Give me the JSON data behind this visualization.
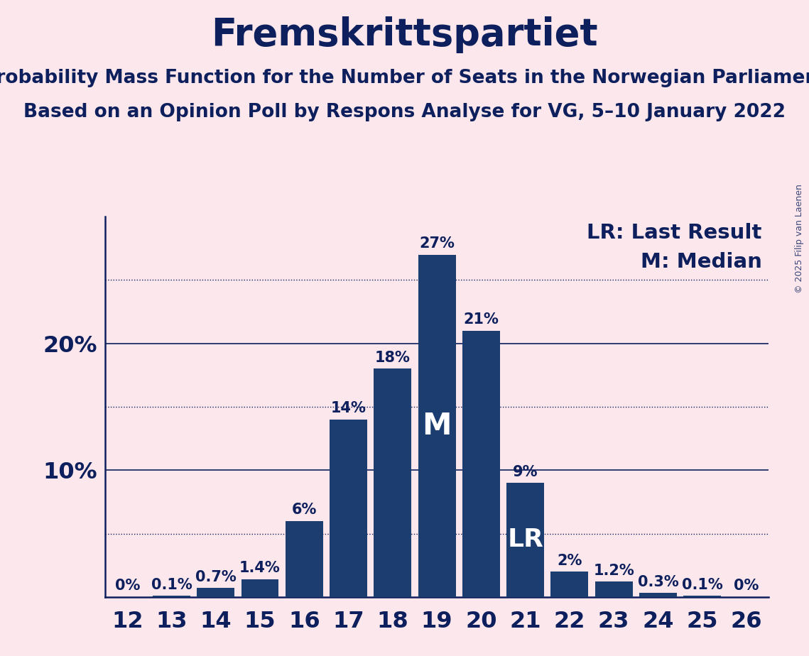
{
  "title": "Fremskrittspartiet",
  "subtitle1": "Probability Mass Function for the Number of Seats in the Norwegian Parliament",
  "subtitle2": "Based on an Opinion Poll by Respons Analyse for VG, 5–10 January 2022",
  "copyright": "© 2025 Filip van Laenen",
  "seats": [
    12,
    13,
    14,
    15,
    16,
    17,
    18,
    19,
    20,
    21,
    22,
    23,
    24,
    25,
    26
  ],
  "values": [
    0.0,
    0.1,
    0.7,
    1.4,
    6.0,
    14.0,
    18.0,
    27.0,
    21.0,
    9.0,
    2.0,
    1.2,
    0.3,
    0.1,
    0.0
  ],
  "labels": [
    "0%",
    "0.1%",
    "0.7%",
    "1.4%",
    "6%",
    "14%",
    "18%",
    "27%",
    "21%",
    "9%",
    "2%",
    "1.2%",
    "0.3%",
    "0.1%",
    "0%"
  ],
  "bar_color": "#1b3d6f",
  "background_color": "#fce8ec",
  "text_color": "#0d1f5c",
  "median_seat": 19,
  "lr_seat": 21,
  "dotted_lines": [
    5,
    15,
    25
  ],
  "solid_lines": [
    10,
    20
  ],
  "ylim": [
    0,
    30
  ],
  "legend_lr": "LR: Last Result",
  "legend_m": "M: Median",
  "title_fontsize": 38,
  "subtitle_fontsize": 19,
  "bar_label_fontsize": 15,
  "axis_label_fontsize": 23,
  "ytick_fontsize": 23,
  "legend_fontsize": 21,
  "m_fontsize": 30,
  "lr_fontsize": 26,
  "copyright_fontsize": 9
}
